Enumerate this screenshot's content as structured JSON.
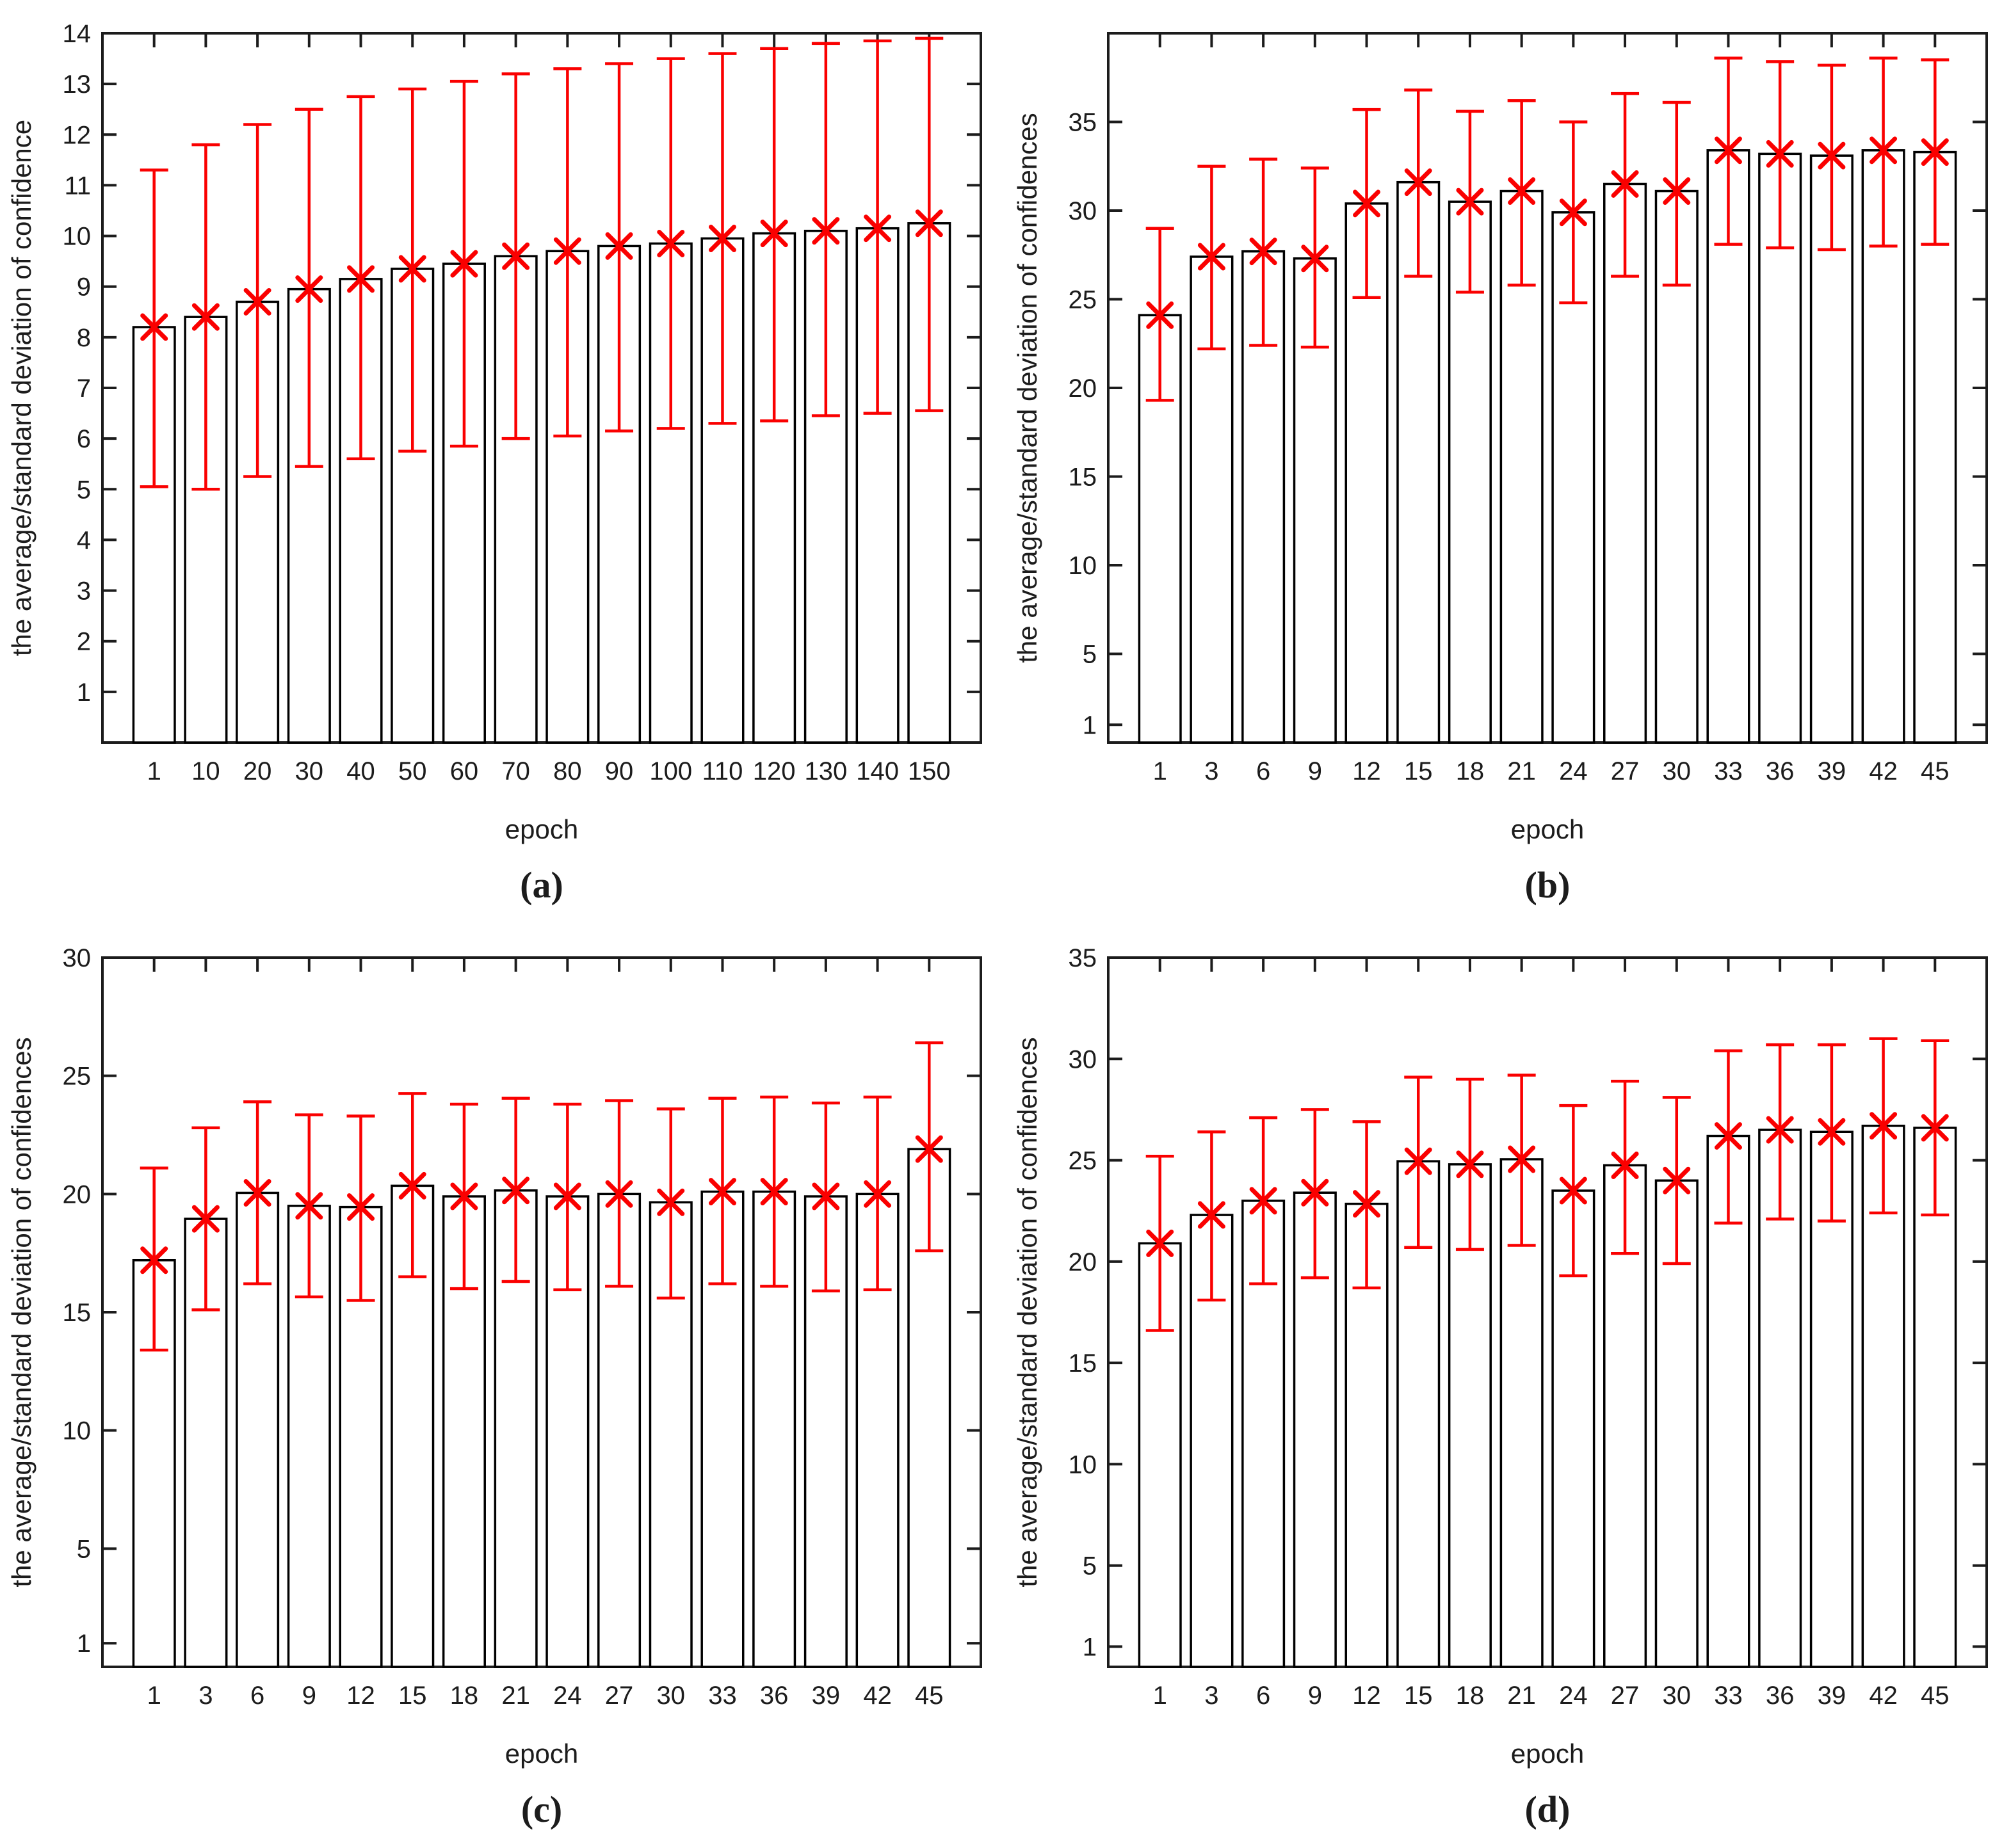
{
  "figure": {
    "background": "#ffffff",
    "axis_color": "#1c1c1c",
    "bar_fill": "#ffffff",
    "bar_edge": "#000000",
    "error_color": "#fa0000",
    "marker": "x-marker",
    "legend": null
  },
  "chart_data": [
    {
      "id": "a",
      "type": "bar",
      "caption": "(a)",
      "xlabel": "epoch",
      "ylabel": "the average/standard deviation of confidence",
      "categories": [
        "1",
        "10",
        "20",
        "30",
        "40",
        "50",
        "60",
        "70",
        "80",
        "90",
        "100",
        "110",
        "120",
        "130",
        "140",
        "150"
      ],
      "values": [
        8.2,
        8.4,
        8.7,
        8.95,
        9.15,
        9.35,
        9.45,
        9.6,
        9.7,
        9.8,
        9.85,
        9.95,
        10.05,
        10.1,
        10.15,
        10.25
      ],
      "error_low": [
        5.05,
        5.0,
        5.25,
        5.45,
        5.6,
        5.75,
        5.85,
        6.0,
        6.05,
        6.15,
        6.2,
        6.3,
        6.35,
        6.45,
        6.5,
        6.55
      ],
      "error_high": [
        11.3,
        11.8,
        12.2,
        12.5,
        12.75,
        12.9,
        13.05,
        13.2,
        13.3,
        13.4,
        13.5,
        13.6,
        13.7,
        13.8,
        13.85,
        13.9
      ],
      "ylim": [
        0,
        14
      ],
      "yticks": [
        1,
        2,
        3,
        4,
        5,
        6,
        7,
        8,
        9,
        10,
        11,
        12,
        13,
        14
      ],
      "grid": false
    },
    {
      "id": "b",
      "type": "bar",
      "caption": "(b)",
      "xlabel": "epoch",
      "ylabel": "the average/standard deviation of confidences",
      "categories": [
        "1",
        "3",
        "6",
        "9",
        "12",
        "15",
        "18",
        "21",
        "24",
        "27",
        "30",
        "33",
        "36",
        "39",
        "42",
        "45"
      ],
      "values": [
        24.1,
        27.4,
        27.7,
        27.3,
        30.4,
        31.6,
        30.5,
        31.1,
        29.9,
        31.5,
        31.1,
        33.4,
        33.2,
        33.1,
        33.4,
        33.3
      ],
      "error_low": [
        19.3,
        22.2,
        22.4,
        22.3,
        25.1,
        26.3,
        25.4,
        25.8,
        24.8,
        26.3,
        25.8,
        28.1,
        27.9,
        27.8,
        28.0,
        28.1
      ],
      "error_high": [
        29.0,
        32.5,
        32.9,
        32.4,
        35.7,
        36.8,
        35.6,
        36.2,
        35.0,
        36.6,
        36.1,
        38.6,
        38.4,
        38.2,
        38.6,
        38.5
      ],
      "ylim": [
        0,
        40
      ],
      "yticks": [
        1,
        5,
        10,
        15,
        20,
        25,
        30,
        35
      ],
      "grid": false
    },
    {
      "id": "c",
      "type": "bar",
      "caption": "(c)",
      "xlabel": "epoch",
      "ylabel": "the average/standard deviation of confidences",
      "categories": [
        "1",
        "3",
        "6",
        "9",
        "12",
        "15",
        "18",
        "21",
        "24",
        "27",
        "30",
        "33",
        "36",
        "39",
        "42",
        "45"
      ],
      "values": [
        17.2,
        18.95,
        20.05,
        19.5,
        19.45,
        20.35,
        19.9,
        20.15,
        19.9,
        20.0,
        19.65,
        20.1,
        20.1,
        19.9,
        20.0,
        21.9
      ],
      "error_low": [
        13.4,
        15.1,
        16.2,
        15.65,
        15.5,
        16.5,
        16.0,
        16.3,
        15.95,
        16.1,
        15.6,
        16.2,
        16.1,
        15.9,
        15.95,
        17.6
      ],
      "error_high": [
        21.1,
        22.8,
        23.9,
        23.35,
        23.3,
        24.25,
        23.8,
        24.05,
        23.8,
        23.95,
        23.6,
        24.05,
        24.1,
        23.85,
        24.1,
        26.4
      ],
      "ylim": [
        0,
        30
      ],
      "yticks": [
        1,
        5,
        10,
        15,
        20,
        25,
        30
      ],
      "grid": false
    },
    {
      "id": "d",
      "type": "bar",
      "caption": "(d)",
      "xlabel": "epoch",
      "ylabel": "the average/standard deviation of confidences",
      "categories": [
        "1",
        "3",
        "6",
        "9",
        "12",
        "15",
        "18",
        "21",
        "24",
        "27",
        "30",
        "33",
        "36",
        "39",
        "42",
        "45"
      ],
      "values": [
        20.9,
        22.3,
        23.0,
        23.4,
        22.85,
        24.95,
        24.8,
        25.05,
        23.5,
        24.75,
        24.0,
        26.2,
        26.5,
        26.4,
        26.7,
        26.6
      ],
      "error_low": [
        16.6,
        18.1,
        18.9,
        19.2,
        18.7,
        20.7,
        20.6,
        20.8,
        19.3,
        20.4,
        19.9,
        21.9,
        22.1,
        22.0,
        22.4,
        22.3
      ],
      "error_high": [
        25.2,
        26.4,
        27.1,
        27.5,
        26.9,
        29.1,
        29.0,
        29.2,
        27.7,
        28.9,
        28.1,
        30.4,
        30.7,
        30.7,
        31.0,
        30.9
      ],
      "ylim": [
        0,
        35
      ],
      "yticks": [
        1,
        5,
        10,
        15,
        20,
        25,
        30,
        35
      ],
      "grid": false
    }
  ]
}
